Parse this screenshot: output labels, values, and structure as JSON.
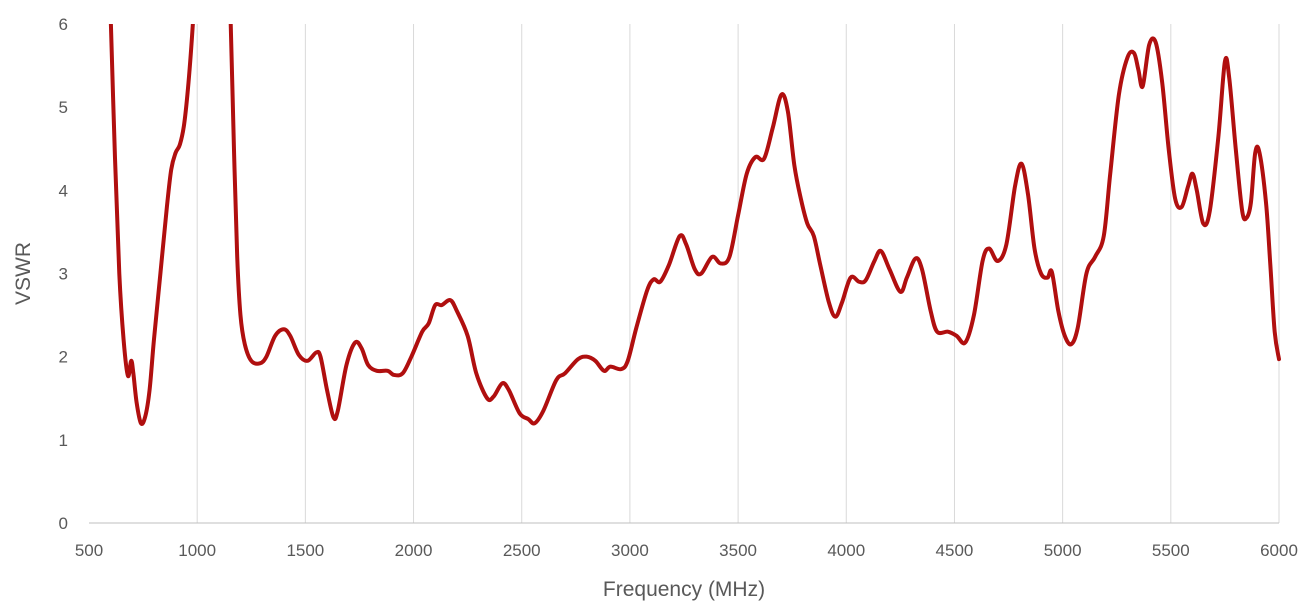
{
  "chart_data": {
    "type": "line",
    "title": "",
    "xlabel": "Frequency (MHz)",
    "ylabel": "VSWR",
    "xlim": [
      500,
      6000
    ],
    "ylim": [
      0,
      6
    ],
    "x_ticks": [
      500,
      1000,
      1500,
      2000,
      2500,
      3000,
      3500,
      4000,
      4500,
      5000,
      5500,
      6000
    ],
    "y_ticks": [
      0,
      1,
      2,
      3,
      4,
      5,
      6
    ],
    "grid": {
      "vertical": true,
      "horizontal": false
    },
    "legend": "none",
    "series": [
      {
        "color": "#b00f0f",
        "points": [
          [
            600,
            6.1
          ],
          [
            620,
            4.4
          ],
          [
            640,
            3.0
          ],
          [
            660,
            2.2
          ],
          [
            680,
            1.77
          ],
          [
            695,
            1.95
          ],
          [
            705,
            1.8
          ],
          [
            720,
            1.45
          ],
          [
            740,
            1.2
          ],
          [
            760,
            1.28
          ],
          [
            780,
            1.6
          ],
          [
            800,
            2.2
          ],
          [
            830,
            3.0
          ],
          [
            860,
            3.8
          ],
          [
            880,
            4.25
          ],
          [
            900,
            4.45
          ],
          [
            920,
            4.55
          ],
          [
            940,
            4.8
          ],
          [
            960,
            5.3
          ],
          [
            980,
            6.0
          ],
          [
            990,
            6.5
          ],
          [
            1145,
            6.5
          ],
          [
            1155,
            6.0
          ],
          [
            1170,
            4.5
          ],
          [
            1185,
            3.2
          ],
          [
            1200,
            2.5
          ],
          [
            1220,
            2.15
          ],
          [
            1250,
            1.95
          ],
          [
            1290,
            1.92
          ],
          [
            1320,
            2.0
          ],
          [
            1360,
            2.25
          ],
          [
            1400,
            2.33
          ],
          [
            1430,
            2.25
          ],
          [
            1470,
            2.02
          ],
          [
            1510,
            1.95
          ],
          [
            1550,
            2.05
          ],
          [
            1570,
            2.0
          ],
          [
            1600,
            1.6
          ],
          [
            1630,
            1.27
          ],
          [
            1650,
            1.35
          ],
          [
            1690,
            1.9
          ],
          [
            1730,
            2.17
          ],
          [
            1760,
            2.1
          ],
          [
            1790,
            1.9
          ],
          [
            1830,
            1.83
          ],
          [
            1880,
            1.83
          ],
          [
            1910,
            1.78
          ],
          [
            1950,
            1.8
          ],
          [
            1990,
            2.0
          ],
          [
            2040,
            2.3
          ],
          [
            2070,
            2.4
          ],
          [
            2100,
            2.62
          ],
          [
            2130,
            2.62
          ],
          [
            2170,
            2.68
          ],
          [
            2200,
            2.55
          ],
          [
            2250,
            2.25
          ],
          [
            2290,
            1.8
          ],
          [
            2340,
            1.5
          ],
          [
            2370,
            1.52
          ],
          [
            2410,
            1.68
          ],
          [
            2440,
            1.6
          ],
          [
            2490,
            1.32
          ],
          [
            2530,
            1.25
          ],
          [
            2560,
            1.2
          ],
          [
            2600,
            1.35
          ],
          [
            2660,
            1.72
          ],
          [
            2700,
            1.8
          ],
          [
            2760,
            1.97
          ],
          [
            2800,
            2.0
          ],
          [
            2840,
            1.95
          ],
          [
            2880,
            1.83
          ],
          [
            2910,
            1.88
          ],
          [
            2960,
            1.85
          ],
          [
            2990,
            1.95
          ],
          [
            3030,
            2.35
          ],
          [
            3080,
            2.8
          ],
          [
            3110,
            2.93
          ],
          [
            3140,
            2.9
          ],
          [
            3180,
            3.1
          ],
          [
            3230,
            3.45
          ],
          [
            3260,
            3.35
          ],
          [
            3300,
            3.05
          ],
          [
            3330,
            3.0
          ],
          [
            3380,
            3.2
          ],
          [
            3420,
            3.12
          ],
          [
            3460,
            3.2
          ],
          [
            3500,
            3.7
          ],
          [
            3540,
            4.2
          ],
          [
            3580,
            4.4
          ],
          [
            3620,
            4.38
          ],
          [
            3660,
            4.75
          ],
          [
            3700,
            5.15
          ],
          [
            3730,
            4.95
          ],
          [
            3760,
            4.3
          ],
          [
            3790,
            3.9
          ],
          [
            3820,
            3.6
          ],
          [
            3850,
            3.45
          ],
          [
            3880,
            3.1
          ],
          [
            3920,
            2.65
          ],
          [
            3950,
            2.48
          ],
          [
            3980,
            2.65
          ],
          [
            4020,
            2.95
          ],
          [
            4060,
            2.9
          ],
          [
            4090,
            2.92
          ],
          [
            4130,
            3.15
          ],
          [
            4160,
            3.27
          ],
          [
            4200,
            3.05
          ],
          [
            4250,
            2.78
          ],
          [
            4280,
            2.95
          ],
          [
            4320,
            3.18
          ],
          [
            4350,
            3.05
          ],
          [
            4390,
            2.55
          ],
          [
            4420,
            2.3
          ],
          [
            4470,
            2.3
          ],
          [
            4510,
            2.25
          ],
          [
            4550,
            2.17
          ],
          [
            4590,
            2.5
          ],
          [
            4630,
            3.15
          ],
          [
            4660,
            3.3
          ],
          [
            4700,
            3.15
          ],
          [
            4740,
            3.35
          ],
          [
            4780,
            4.05
          ],
          [
            4810,
            4.32
          ],
          [
            4840,
            3.95
          ],
          [
            4870,
            3.3
          ],
          [
            4900,
            3.0
          ],
          [
            4930,
            2.95
          ],
          [
            4950,
            3.02
          ],
          [
            4980,
            2.55
          ],
          [
            5010,
            2.25
          ],
          [
            5040,
            2.15
          ],
          [
            5070,
            2.35
          ],
          [
            5110,
            3.0
          ],
          [
            5150,
            3.2
          ],
          [
            5190,
            3.45
          ],
          [
            5220,
            4.2
          ],
          [
            5260,
            5.15
          ],
          [
            5300,
            5.6
          ],
          [
            5330,
            5.65
          ],
          [
            5350,
            5.45
          ],
          [
            5370,
            5.25
          ],
          [
            5400,
            5.75
          ],
          [
            5430,
            5.78
          ],
          [
            5460,
            5.3
          ],
          [
            5490,
            4.5
          ],
          [
            5520,
            3.9
          ],
          [
            5550,
            3.8
          ],
          [
            5580,
            4.05
          ],
          [
            5600,
            4.2
          ],
          [
            5620,
            4.0
          ],
          [
            5650,
            3.6
          ],
          [
            5680,
            3.75
          ],
          [
            5720,
            4.65
          ],
          [
            5750,
            5.55
          ],
          [
            5770,
            5.35
          ],
          [
            5800,
            4.5
          ],
          [
            5830,
            3.75
          ],
          [
            5850,
            3.67
          ],
          [
            5870,
            3.85
          ],
          [
            5890,
            4.45
          ],
          [
            5910,
            4.45
          ],
          [
            5940,
            3.85
          ],
          [
            5960,
            3.1
          ],
          [
            5980,
            2.3
          ],
          [
            6000,
            1.97
          ]
        ]
      }
    ]
  }
}
